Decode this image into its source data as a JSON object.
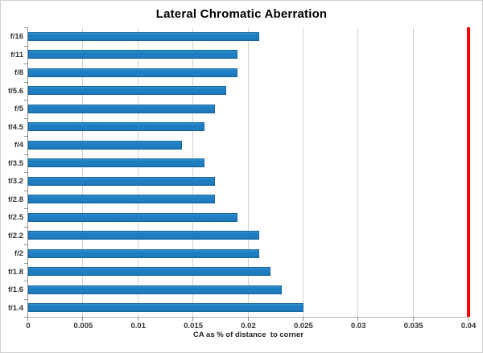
{
  "chart_data": {
    "type": "bar",
    "orientation": "horizontal",
    "title": "Lateral Chromatic Aberration",
    "xlabel": "CA as % of distance  to corner",
    "categories": [
      "f/16",
      "f/11",
      "f/8",
      "f/5.6",
      "f/5",
      "f/4.5",
      "f/4",
      "f/3.5",
      "f/3.2",
      "f/2.8",
      "f/2.5",
      "f/2.2",
      "f/2",
      "f/1.8",
      "f/1.6",
      "f/1.4"
    ],
    "values": [
      0.021,
      0.019,
      0.019,
      0.018,
      0.017,
      0.016,
      0.014,
      0.016,
      0.017,
      0.017,
      0.019,
      0.021,
      0.021,
      0.022,
      0.023,
      0.025
    ],
    "x_ticks": [
      0,
      0.005,
      0.01,
      0.015,
      0.02,
      0.025,
      0.03,
      0.035,
      0.04
    ],
    "x_tick_labels": [
      "0",
      "0.005",
      "0.01",
      "0.015",
      "0.02",
      "0.025",
      "0.03",
      "0.035",
      "0.04"
    ],
    "xlim": [
      0,
      0.04
    ],
    "grid": true,
    "legend": "none",
    "reference_line": {
      "value": 0.04,
      "color": "#ff0000"
    },
    "colors": {
      "bar_fill": "#1f7ec2",
      "bar_border": "#15679f",
      "reference_red": "#ff0000",
      "gridline": "#d2d2d2",
      "axis": "#8f8f8f"
    }
  }
}
